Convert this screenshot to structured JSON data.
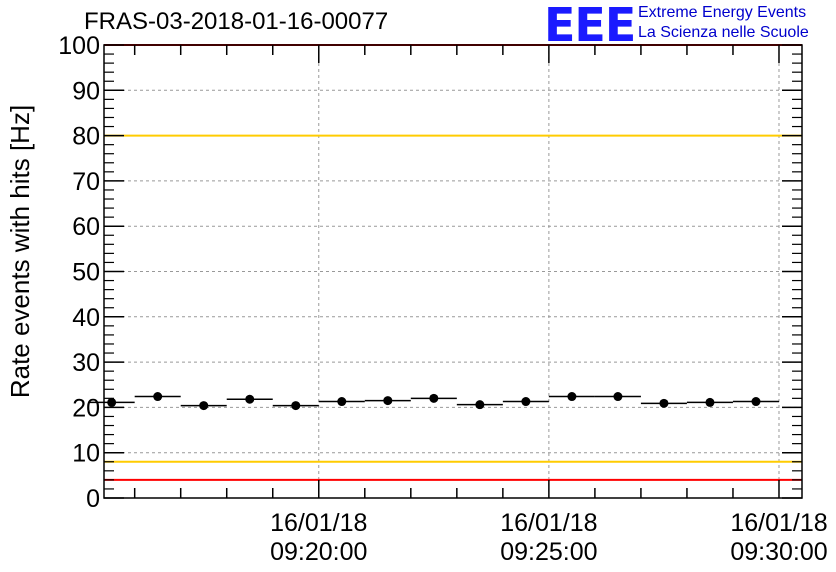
{
  "header": {
    "title": "FRAS-03-2018-01-16-00077",
    "logo_text": "EEE",
    "logo_line1": "Extreme Energy Events",
    "logo_line2": "La Scienza nelle Scuole"
  },
  "chart_data": {
    "type": "scatter",
    "title": "FRAS-03-2018-01-16-00077",
    "ylabel": "Rate events with hits [Hz]",
    "xlabel": "",
    "ylim": [
      0,
      100
    ],
    "xlim": [
      "16/01/18 09:15:20",
      "16/01/18 09:30:30"
    ],
    "yticks": [
      "0",
      "10",
      "20",
      "30",
      "40",
      "50",
      "60",
      "70",
      "80",
      "90",
      "100"
    ],
    "xticks": [
      {
        "date": "16/01/18",
        "time": "09:20:00"
      },
      {
        "date": "16/01/18",
        "time": "09:25:00"
      },
      {
        "date": "16/01/18",
        "time": "09:30:00"
      }
    ],
    "grid": true,
    "reference_lines": [
      {
        "y": 100,
        "color": "#ff0000"
      },
      {
        "y": 80,
        "color": "#ffcc00"
      },
      {
        "y": 8,
        "color": "#ffcc00"
      },
      {
        "y": 4,
        "color": "#ff0000"
      }
    ],
    "bin_width_seconds": 60,
    "series": [
      {
        "color": "#000000",
        "points": [
          {
            "x": "09:15:30",
            "y": 21.1
          },
          {
            "x": "09:16:30",
            "y": 22.4
          },
          {
            "x": "09:17:30",
            "y": 20.4
          },
          {
            "x": "09:18:30",
            "y": 21.8
          },
          {
            "x": "09:19:30",
            "y": 20.4
          },
          {
            "x": "09:20:30",
            "y": 21.3
          },
          {
            "x": "09:21:30",
            "y": 21.5
          },
          {
            "x": "09:22:30",
            "y": 22.0
          },
          {
            "x": "09:23:30",
            "y": 20.6
          },
          {
            "x": "09:24:30",
            "y": 21.3
          },
          {
            "x": "09:25:30",
            "y": 22.4
          },
          {
            "x": "09:26:30",
            "y": 22.4
          },
          {
            "x": "09:27:30",
            "y": 20.9
          },
          {
            "x": "09:28:30",
            "y": 21.1
          },
          {
            "x": "09:29:30",
            "y": 21.3
          }
        ]
      }
    ]
  }
}
